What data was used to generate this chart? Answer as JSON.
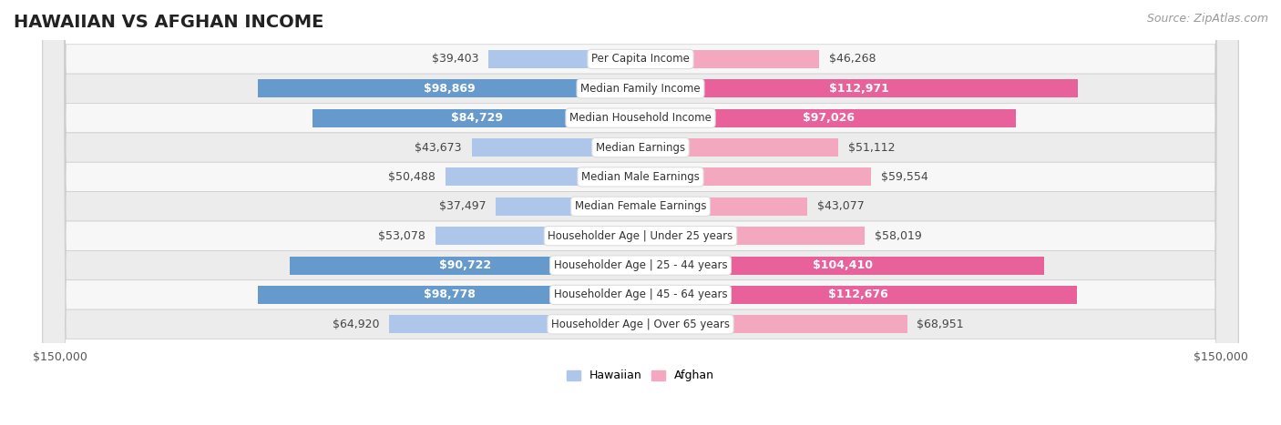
{
  "title": "HAWAIIAN VS AFGHAN INCOME",
  "source": "Source: ZipAtlas.com",
  "categories": [
    "Per Capita Income",
    "Median Family Income",
    "Median Household Income",
    "Median Earnings",
    "Median Male Earnings",
    "Median Female Earnings",
    "Householder Age | Under 25 years",
    "Householder Age | 25 - 44 years",
    "Householder Age | 45 - 64 years",
    "Householder Age | Over 65 years"
  ],
  "hawaiian": [
    39403,
    98869,
    84729,
    43673,
    50488,
    37497,
    53078,
    90722,
    98778,
    64920
  ],
  "afghan": [
    46268,
    112971,
    97026,
    51112,
    59554,
    43077,
    58019,
    104410,
    112676,
    68951
  ],
  "max_val": 150000,
  "hawaiian_color_light": "#adc6ea",
  "hawaiian_color_dark": "#6699cc",
  "afghan_color_light": "#f4a8c0",
  "afghan_color_dark": "#e8619a",
  "bar_height": 0.62,
  "row_bg_light": "#f7f7f7",
  "row_bg_dark": "#ececec",
  "title_fontsize": 14,
  "source_fontsize": 9,
  "label_fontsize": 9,
  "category_fontsize": 8.5,
  "axis_label_fontsize": 9,
  "hawaiian_inside_threshold": 65000,
  "afghan_inside_threshold": 85000
}
